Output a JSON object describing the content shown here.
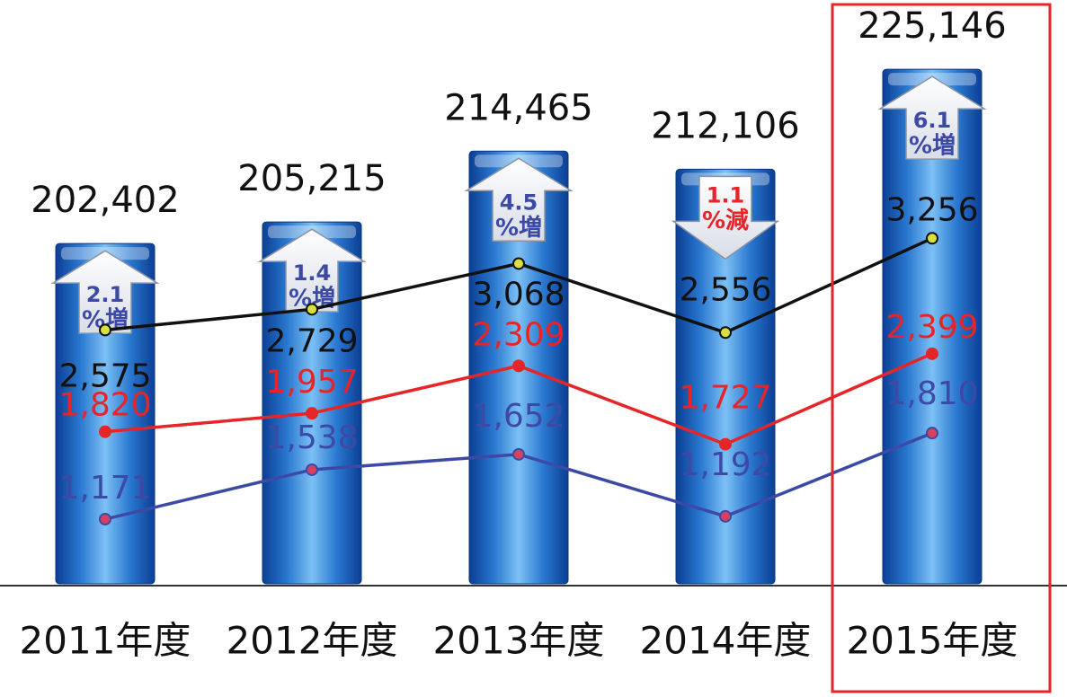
{
  "chart_data": {
    "type": "bar",
    "categories": [
      "2011年度",
      "2012年度",
      "2013年度",
      "2014年度",
      "2015年度"
    ],
    "ylim": [
      158000,
      229500
    ],
    "y2lim": [
      691,
      4758
    ],
    "series": [
      {
        "name": null,
        "color": "#2a78d0",
        "values": [
          202402,
          205215,
          214465,
          212106,
          225146
        ],
        "value_labels": [
          "202,402",
          "205,215",
          "214,465",
          "212,106",
          "225,146"
        ]
      },
      {
        "name": null,
        "axis": "y2",
        "type": "line",
        "color": "#111111",
        "marker_fill": "#d8e040",
        "values": [
          2575,
          2729,
          3068,
          2556,
          3256
        ],
        "value_labels": [
          "2,575",
          "2,729",
          "3,068",
          "2,556",
          "3,256"
        ]
      },
      {
        "name": null,
        "axis": "y2",
        "type": "line",
        "color": "#e52528",
        "marker_fill": "#e52528",
        "values": [
          1820,
          1957,
          2309,
          1727,
          2399
        ],
        "value_labels": [
          "1,820",
          "1,957",
          "2,309",
          "1,727",
          "2,399"
        ]
      },
      {
        "name": null,
        "axis": "y2",
        "type": "line",
        "color": "#3c4aa6",
        "marker_fill": "#d84060",
        "values": [
          1171,
          1538,
          1652,
          1192,
          1810
        ],
        "value_labels": [
          "1,171",
          "1,538",
          "1,652",
          "1,192",
          "1,810"
        ]
      }
    ],
    "annotations": [
      {
        "value": 2.1,
        "text": "%増",
        "direction": "up"
      },
      {
        "value": 1.4,
        "text": "%増",
        "direction": "up"
      },
      {
        "value": 4.5,
        "text": "%増",
        "direction": "up"
      },
      {
        "value": 1.1,
        "text": "%減",
        "direction": "down"
      },
      {
        "value": 6.1,
        "text": "%増",
        "direction": "up"
      }
    ]
  }
}
